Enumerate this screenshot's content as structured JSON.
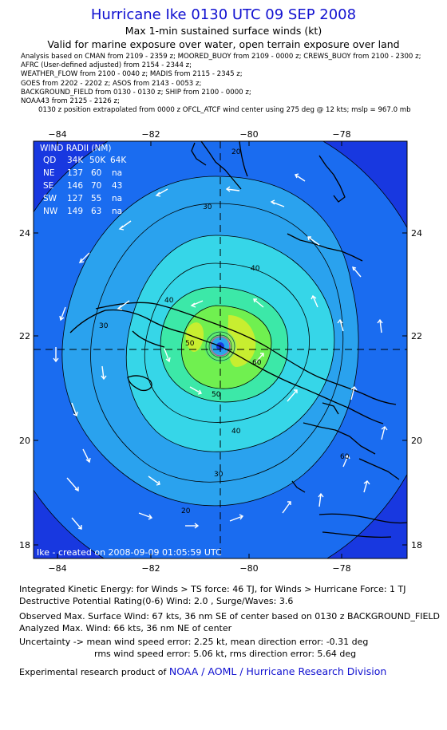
{
  "header": {
    "title": "Hurricane Ike 0130 UTC 09 SEP 2008",
    "subtitle1": "Max 1-min sustained surface winds (kt)",
    "subtitle2": "Valid for marine exposure over water, open terrain exposure over land"
  },
  "sources": [
    "Analysis based on  CMAN from 2109 - 2359 z;  MOORED_BUOY from 2109 - 0000 z;  CREWS_BUOY from 2100 - 2300 z;",
    "AFRC (User-defined adjusted) from 2154 - 2344 z;",
    "WEATHER_FLOW from 2100 - 0040 z;  MADIS from 2115 - 2345 z;",
    "GOES from 2202 - 2202 z;  ASOS from 2143 - 0053 z;",
    "BACKGROUND_FIELD from 0130 - 0130 z;  SHIP from 2100 - 0000 z;",
    "NOAA43 from 2125 - 2126 z;"
  ],
  "position_note": "0130 z position extrapolated from 0000 z OFCL_ATCF wind center using 275 deg @ 12 kts; mslp = 967.0 mb",
  "map": {
    "lon_ticks": [
      "−84",
      "−82",
      "−80",
      "−78"
    ],
    "lat_ticks": [
      "24",
      "22",
      "20",
      "18"
    ],
    "contour_labels": [
      "20",
      "30",
      "40",
      "50",
      "60",
      "40",
      "30",
      "20",
      "60",
      "30",
      "40",
      "50"
    ],
    "footer_label": "Ike - created on 2008-09-09 01:05:59 UTC",
    "colors": {
      "deep": "#1838e0",
      "c20": "#1a6cf0",
      "c30": "#2aa2ee",
      "c40": "#36d6e8",
      "c50": "#3ce8a8",
      "c60": "#70f050",
      "c64": "#c8ee30"
    }
  },
  "wind_radii": {
    "title": "WIND RADII (NM)",
    "header": [
      "QD",
      "34K",
      "50K",
      "64K"
    ],
    "rows": [
      [
        "NE",
        "137",
        "60",
        "na"
      ],
      [
        "SE",
        "146",
        "70",
        "43"
      ],
      [
        "SW",
        "127",
        "55",
        "na"
      ],
      [
        "NW",
        "149",
        "63",
        "na"
      ]
    ]
  },
  "stats": {
    "ike": "Integrated Kinetic Energy:  for Winds > TS force: 46 TJ,  for Winds > Hurricane Force: 1 TJ",
    "dpr": "Destructive Potential Rating(0-6)   Wind: 2.0 , Surge/Waves: 3.6",
    "observed": "Observed Max. Surface Wind: 67 kts, 36 nm SE of center based on 0130 z BACKGROUND_FIELD",
    "analyzed": "Analyzed Max. Wind: 66 kts, 36 nm NE of center",
    "uncert1": "Uncertainty -> mean wind speed error: 2.25 kt,   mean direction error:  -0.31 deg",
    "uncert2": "rms wind speed error: 5.06 kt,   rms direction error: 5.64 deg"
  },
  "credit": {
    "prefix": "Experimental research product of ",
    "link": "NOAA / AOML / Hurricane Research Division"
  }
}
